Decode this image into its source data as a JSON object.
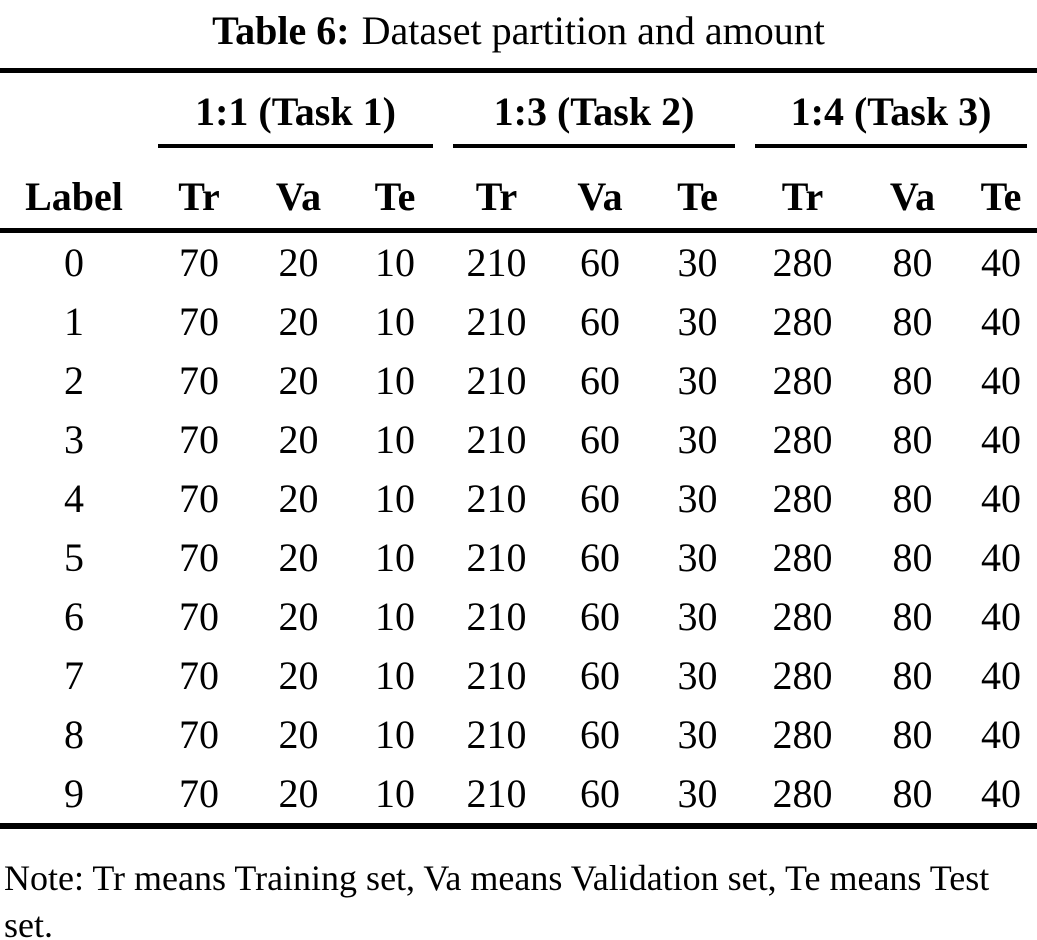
{
  "caption": {
    "label": "Table 6:",
    "text": "Dataset partition and amount"
  },
  "table": {
    "label_header": "Label",
    "groups": [
      {
        "label": "1:1 (Task 1)"
      },
      {
        "label": "1:3 (Task 2)"
      },
      {
        "label": "1:4 (Task 3)"
      }
    ],
    "sub_headers": [
      "Tr",
      "Va",
      "Te"
    ],
    "rows": [
      {
        "label": "0",
        "values": [
          "70",
          "20",
          "10",
          "210",
          "60",
          "30",
          "280",
          "80",
          "40"
        ]
      },
      {
        "label": "1",
        "values": [
          "70",
          "20",
          "10",
          "210",
          "60",
          "30",
          "280",
          "80",
          "40"
        ]
      },
      {
        "label": "2",
        "values": [
          "70",
          "20",
          "10",
          "210",
          "60",
          "30",
          "280",
          "80",
          "40"
        ]
      },
      {
        "label": "3",
        "values": [
          "70",
          "20",
          "10",
          "210",
          "60",
          "30",
          "280",
          "80",
          "40"
        ]
      },
      {
        "label": "4",
        "values": [
          "70",
          "20",
          "10",
          "210",
          "60",
          "30",
          "280",
          "80",
          "40"
        ]
      },
      {
        "label": "5",
        "values": [
          "70",
          "20",
          "10",
          "210",
          "60",
          "30",
          "280",
          "80",
          "40"
        ]
      },
      {
        "label": "6",
        "values": [
          "70",
          "20",
          "10",
          "210",
          "60",
          "30",
          "280",
          "80",
          "40"
        ]
      },
      {
        "label": "7",
        "values": [
          "70",
          "20",
          "10",
          "210",
          "60",
          "30",
          "280",
          "80",
          "40"
        ]
      },
      {
        "label": "8",
        "values": [
          "70",
          "20",
          "10",
          "210",
          "60",
          "30",
          "280",
          "80",
          "40"
        ]
      },
      {
        "label": "9",
        "values": [
          "70",
          "20",
          "10",
          "210",
          "60",
          "30",
          "280",
          "80",
          "40"
        ]
      }
    ]
  },
  "note": {
    "text": "Note: Tr means Training set, Va means Validation set, Te means Test set."
  },
  "colors": {
    "text": "#000000",
    "background": "#ffffff",
    "rule": "#000000"
  }
}
